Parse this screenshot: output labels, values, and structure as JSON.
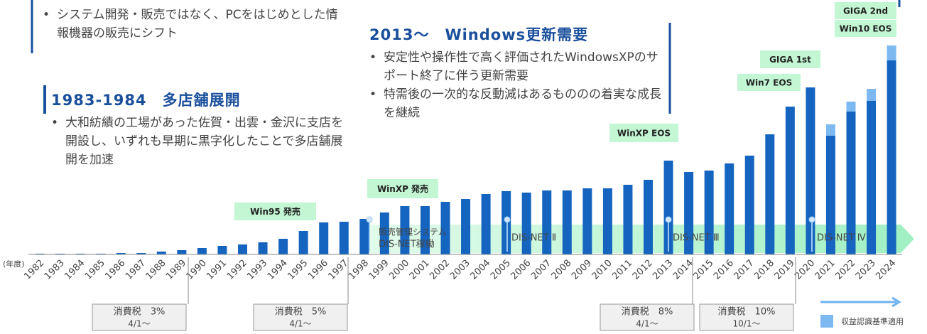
{
  "chart_data": {
    "type": "bar",
    "x_unit_label": "(年度)",
    "categories": [
      "1982",
      "1983",
      "1984",
      "1985",
      "1986",
      "1987",
      "1988",
      "1989",
      "1990",
      "1991",
      "1992",
      "1993",
      "1994",
      "1995",
      "1996",
      "1997",
      "1998",
      "1999",
      "2000",
      "2001",
      "2002",
      "2003",
      "2004",
      "2005",
      "2006",
      "2007",
      "2008",
      "2009",
      "2010",
      "2011",
      "2012",
      "2013",
      "2014",
      "2015",
      "2016",
      "2017",
      "2018",
      "2019",
      "2020",
      "2021",
      "2022",
      "2023",
      "2024"
    ],
    "series": [
      {
        "color": "#1565c0",
        "values": [
          1,
          1,
          1,
          1,
          2,
          2,
          4,
          6,
          9,
          12,
          14,
          17,
          22,
          33,
          45,
          46,
          50,
          59,
          68,
          68,
          74,
          78,
          85,
          89,
          87,
          90,
          90,
          93,
          93,
          98,
          105,
          132,
          116,
          118,
          128,
          139,
          169,
          208,
          235,
          167,
          201,
          216,
          273
        ]
      },
      {
        "name": "収益認識基準適用",
        "color": "#7db9f0",
        "values": [
          null,
          null,
          null,
          null,
          null,
          null,
          null,
          null,
          null,
          null,
          null,
          null,
          null,
          null,
          null,
          null,
          null,
          null,
          null,
          null,
          null,
          null,
          null,
          null,
          null,
          null,
          null,
          null,
          null,
          null,
          null,
          null,
          null,
          null,
          null,
          null,
          null,
          null,
          null,
          16,
          14,
          17,
          21
        ]
      }
    ],
    "ylim": [
      0,
      300
    ],
    "milestones": [
      "Win95 発売",
      "WinXP 発売",
      "WinXP EOS",
      "Win7 EOS",
      "GIGA 1st",
      "GIGA 2nd",
      "Win10 EOS"
    ],
    "systems": [
      "販売管理システム",
      "DIS-NET稼働",
      "DIS-NET Ⅱ",
      "DIS-NET Ⅲ",
      "DIS-NET Ⅳ"
    ],
    "tax": [
      {
        "label": "消費税　3%",
        "date": "4/1～"
      },
      {
        "label": "消費税　5%",
        "date": "4/1～"
      },
      {
        "label": "消費税　8%",
        "date": "4/1～"
      },
      {
        "label": "消費税　10%",
        "date": "10/1～"
      }
    ]
  },
  "notes": [
    {
      "bullets": [
        "システム開発・販売ではなく、PCをはじめとした情報機器の販売にシフト"
      ]
    },
    {
      "title": "1983-1984　多店舗展開",
      "bullets": [
        "大和紡績の工場があった佐賀・出雲・金沢に支店を開設し、いずれも早期に黒字化したことで多店舗展開を加速"
      ]
    },
    {
      "title": "2013～　Windows更新需要",
      "bullets": [
        "安定性や操作性で高く評価されたWindowsXPのサポート終了に伴う更新需要",
        "特需後の一次的な反動減はあるもののの着実な成長を継続"
      ]
    }
  ]
}
